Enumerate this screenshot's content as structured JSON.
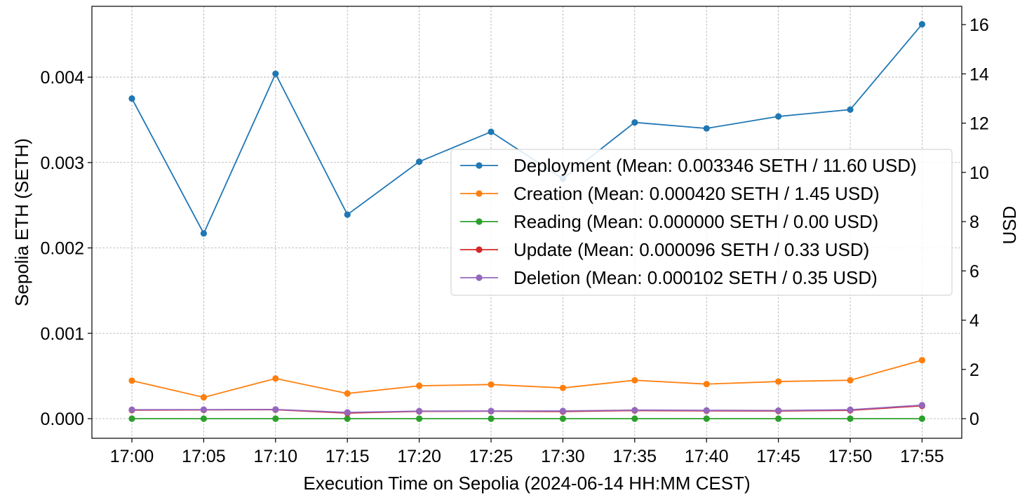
{
  "chart_data": {
    "type": "line",
    "xlabel": "Execution Time on Sepolia (2024-06-14 HH:MM CEST)",
    "ylabel": "Sepolia ETH (SETH)",
    "y2label": "USD",
    "categories": [
      "17:00",
      "17:05",
      "17:10",
      "17:15",
      "17:20",
      "17:25",
      "17:30",
      "17:35",
      "17:40",
      "17:45",
      "17:50",
      "17:55"
    ],
    "ylim": [
      -0.00023,
      0.00483
    ],
    "y2lim": [
      -0.797,
      16.743
    ],
    "yticks": [
      0.0,
      0.001,
      0.002,
      0.003,
      0.004
    ],
    "ytick_labels": [
      "0.000",
      "0.001",
      "0.002",
      "0.003",
      "0.004"
    ],
    "y2ticks": [
      0,
      2,
      4,
      6,
      8,
      10,
      12,
      14,
      16
    ],
    "y2tick_labels": [
      "0",
      "2",
      "4",
      "6",
      "8",
      "10",
      "12",
      "14",
      "16"
    ],
    "grid": true,
    "legend_position": "center-right",
    "series": [
      {
        "name": "Deployment (Mean: 0.003346 SETH / 11.60 USD)",
        "color": "#1f77b4",
        "values": [
          0.00375,
          0.00217,
          0.00404,
          0.00239,
          0.00301,
          0.00336,
          0.00281,
          0.00347,
          0.0034,
          0.00354,
          0.00362,
          0.00462
        ]
      },
      {
        "name": "Creation (Mean: 0.000420 SETH / 1.45 USD)",
        "color": "#ff7f0e",
        "values": [
          0.000445,
          0.00025,
          0.00047,
          0.000295,
          0.000385,
          0.0004,
          0.00036,
          0.00045,
          0.000405,
          0.000435,
          0.00045,
          0.000685
        ]
      },
      {
        "name": "Reading (Mean: 0.000000 SETH / 0.00 USD)",
        "color": "#2ca02c",
        "values": [
          0,
          0,
          0,
          0,
          0,
          0,
          0,
          0,
          0,
          0,
          0,
          0
        ]
      },
      {
        "name": "Update (Mean: 0.000096 SETH / 0.33 USD)",
        "color": "#d62728",
        "values": [
          0.0001,
          0.000103,
          0.000105,
          6.5e-05,
          8.5e-05,
          8.7e-05,
          8.3e-05,
          9.5e-05,
          9.2e-05,
          9e-05,
          9.8e-05,
          0.00015
        ]
      },
      {
        "name": "Deletion (Mean: 0.000102 SETH / 0.35 USD)",
        "color": "#9467bd",
        "values": [
          0.000105,
          0.000106,
          0.000108,
          7.3e-05,
          8.8e-05,
          9e-05,
          9e-05,
          0.0001,
          9.7e-05,
          9.5e-05,
          0.000105,
          0.000158
        ]
      }
    ]
  }
}
